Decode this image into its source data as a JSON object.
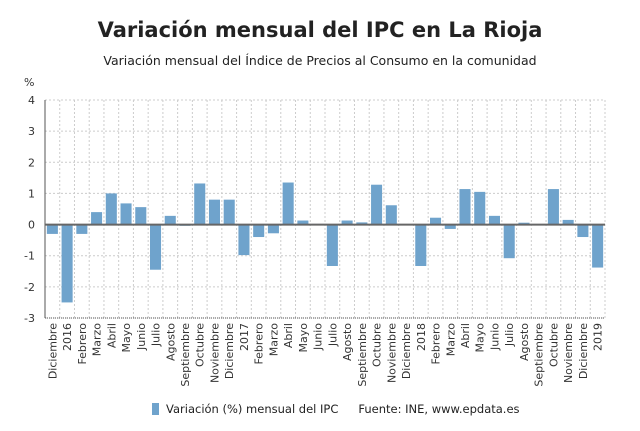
{
  "chart_data": {
    "type": "bar",
    "title": "Variación mensual del IPC en La Rioja",
    "subtitle": "Variación mensual del Índice de Precios al Consumo en la comunidad",
    "ylabel": "%",
    "xlabel": "",
    "ylim": [
      -3,
      4
    ],
    "yticks": [
      4,
      3,
      2,
      1,
      0,
      -1,
      -2,
      -3
    ],
    "grid": true,
    "legend_position": "bottom",
    "bar_color": "#6fa3cc",
    "categories": [
      "Diciembre",
      "2016",
      "Febrero",
      "Marzo",
      "Abril",
      "Mayo",
      "Junio",
      "Julio",
      "Agosto",
      "Septiembre",
      "Octubre",
      "Noviembre",
      "Diciembre",
      "2017",
      "Febrero",
      "Marzo",
      "Abril",
      "Mayo",
      "Junio",
      "Julio",
      "Agosto",
      "Septiembre",
      "Octubre",
      "Noviembre",
      "Diciembre",
      "2018",
      "Febrero",
      "Marzo",
      "Abril",
      "Mayo",
      "Junio",
      "Julio",
      "Agosto",
      "Septiembre",
      "Octubre",
      "Noviembre",
      "Diciembre",
      "2019"
    ],
    "series": [
      {
        "name": "Variación (%) mensual del IPC",
        "values": [
          -0.3,
          -2.5,
          -0.3,
          0.4,
          1.0,
          0.68,
          0.56,
          -1.45,
          0.28,
          -0.04,
          1.32,
          0.8,
          0.8,
          -0.98,
          -0.4,
          -0.28,
          1.35,
          0.13,
          0.02,
          -1.33,
          0.13,
          0.07,
          1.28,
          0.62,
          0.0,
          -1.33,
          0.22,
          -0.14,
          1.14,
          1.05,
          0.28,
          -1.08,
          0.06,
          0.0,
          1.14,
          0.15,
          -0.4,
          -1.38
        ]
      }
    ],
    "source": "Fuente: INE, www.epdata.es"
  }
}
